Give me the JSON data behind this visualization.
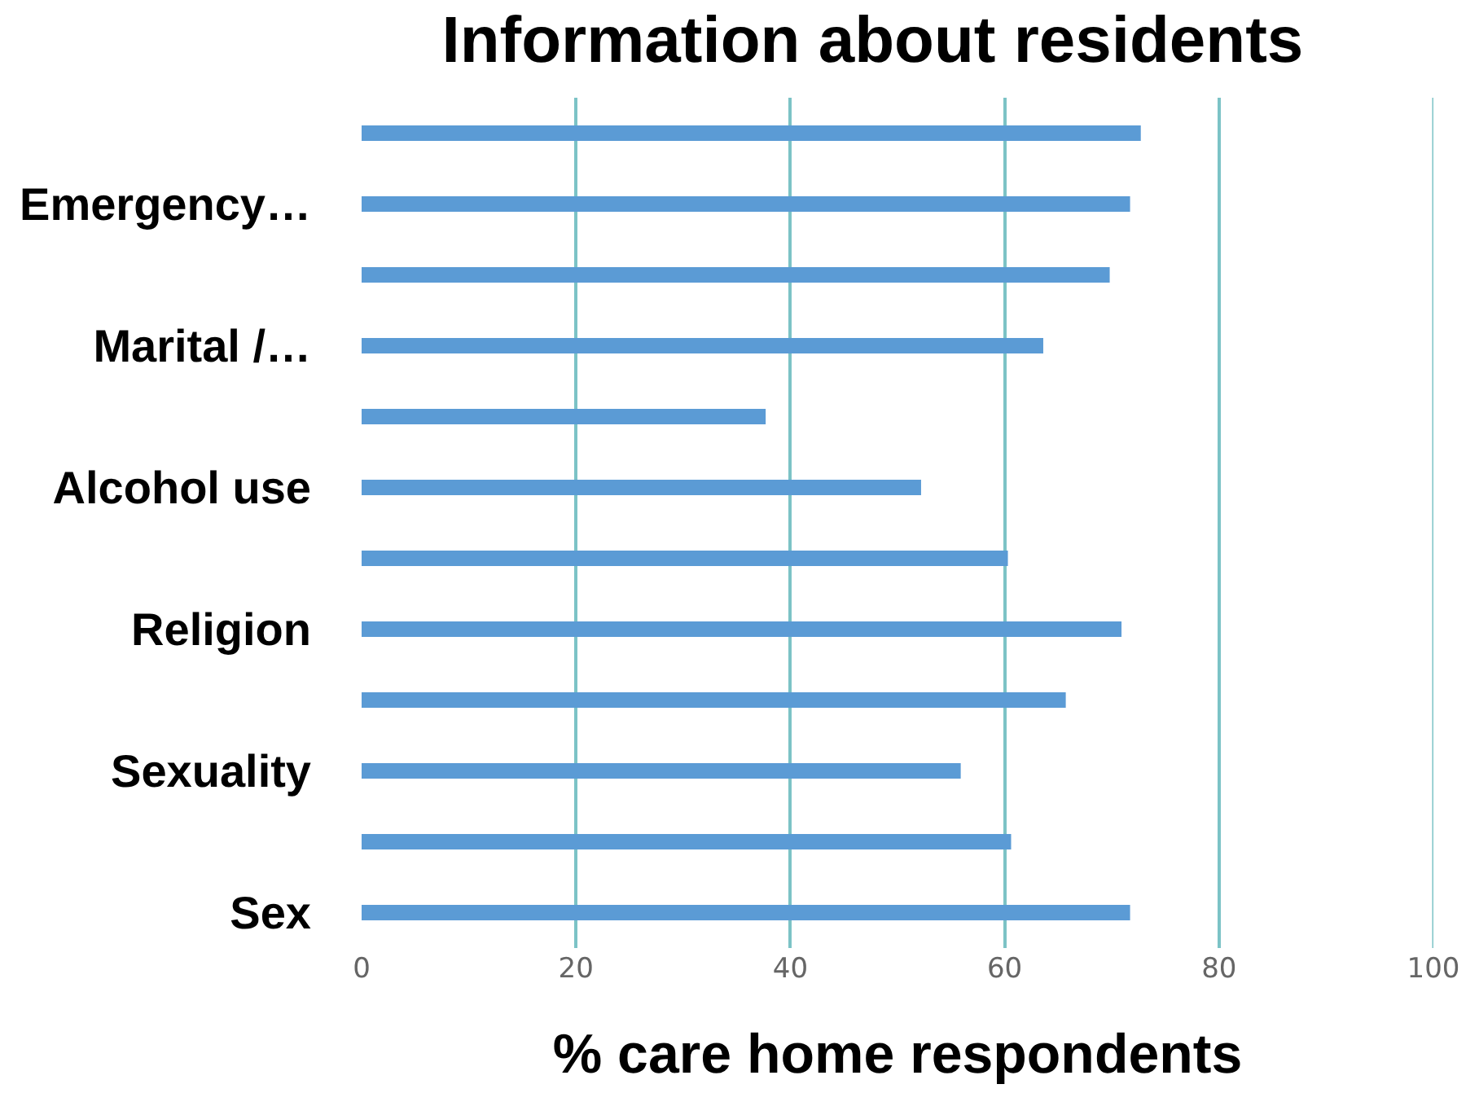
{
  "chart_data": {
    "type": "bar",
    "orientation": "horizontal",
    "title": "Information about residents",
    "xlabel": "% care home respondents",
    "categories": [
      null,
      "Emergency…",
      null,
      "Marital /…",
      null,
      "Alcohol use",
      null,
      "Religion",
      null,
      "Sexuality",
      null,
      "Sex"
    ],
    "values": [
      72.7,
      71.7,
      69.8,
      63.6,
      37.7,
      52.2,
      60.3,
      70.9,
      65.7,
      55.9,
      60.6,
      71.7
    ],
    "color": "#5b9bd5",
    "xlim": [
      0,
      100
    ],
    "xticks": [
      0,
      20,
      40,
      60,
      80,
      100
    ],
    "grid": "x"
  }
}
